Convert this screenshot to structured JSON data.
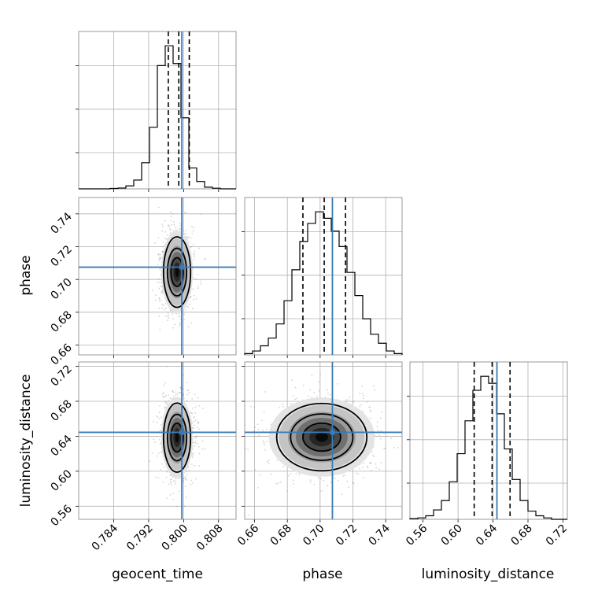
{
  "colors": {
    "truth": "#3a7bb5",
    "contour": "#000000",
    "scatter": "#808080",
    "grid": "#b0b0b0"
  },
  "chart_data": {
    "type": "corner",
    "grid": true,
    "parameters": [
      {
        "name": "geocent_time",
        "label": "geocent_time",
        "range": [
          0.776,
          0.812
        ],
        "ticks": [
          "0.784",
          "0.792",
          "0.800",
          "0.808"
        ],
        "tick_values": [
          0.784,
          0.792,
          0.8,
          0.808
        ],
        "truth": 0.7996,
        "quantiles": [
          0.7965,
          0.7989,
          0.8013
        ]
      },
      {
        "name": "phase",
        "label": "phase",
        "range": [
          0.654,
          0.75
        ],
        "ticks": [
          "0.66",
          "0.68",
          "0.70",
          "0.72",
          "0.74"
        ],
        "tick_values": [
          0.66,
          0.68,
          0.7,
          0.72,
          0.74
        ],
        "truth": 0.7075,
        "quantiles": [
          0.6895,
          0.7025,
          0.7155
        ]
      },
      {
        "name": "luminosity_distance",
        "label": "luminosity_distance",
        "range": [
          0.545,
          0.725
        ],
        "ticks": [
          "0.56",
          "0.60",
          "0.64",
          "0.68",
          "0.72"
        ],
        "tick_values": [
          0.56,
          0.6,
          0.64,
          0.68,
          0.72
        ],
        "truth": 0.6445,
        "quantiles": [
          0.6185,
          0.639,
          0.6595
        ]
      }
    ],
    "histograms": [
      {
        "parameter": "geocent_time",
        "bin_start": 0.776,
        "bin_width": 0.0018,
        "counts": [
          0,
          0,
          0,
          0,
          0.2,
          0.4,
          1.4,
          4.2,
          12.5,
          29.5,
          59,
          68.5,
          60,
          34,
          10,
          3.5,
          0.8,
          0.3,
          0,
          0
        ]
      },
      {
        "parameter": "phase",
        "bin_start": 0.654,
        "bin_width": 0.0048,
        "counts": [
          0.5,
          1.5,
          3.5,
          6.5,
          12,
          21,
          33,
          44,
          51,
          55.5,
          53,
          48,
          42,
          32,
          23,
          14,
          8,
          4.5,
          1.5,
          0.5
        ]
      },
      {
        "parameter": "luminosity_distance",
        "bin_start": 0.545,
        "bin_width": 0.009,
        "counts": [
          0.3,
          0.6,
          1.5,
          4,
          8,
          16,
          28,
          42,
          55,
          61,
          58,
          45,
          30,
          17,
          8,
          3.5,
          1.5,
          0.6,
          0,
          0
        ]
      }
    ],
    "joint_2d": [
      {
        "x": "geocent_time",
        "y": "phase",
        "peak": [
          0.7985,
          0.7045
        ],
        "contours": [
          {
            "rx": 0.0031,
            "ry": 0.0215
          },
          {
            "rx": 0.0022,
            "ry": 0.0145
          },
          {
            "rx": 0.0014,
            "ry": 0.0088
          }
        ]
      },
      {
        "x": "geocent_time",
        "y": "luminosity_distance",
        "peak": [
          0.7985,
          0.6385
        ],
        "contours": [
          {
            "rx": 0.0031,
            "ry": 0.0395
          },
          {
            "rx": 0.0022,
            "ry": 0.0265
          },
          {
            "rx": 0.0014,
            "ry": 0.0165
          }
        ]
      },
      {
        "x": "phase",
        "y": "luminosity_distance",
        "peak": [
          0.701,
          0.639
        ],
        "contours": [
          {
            "rx": 0.0275,
            "ry": 0.0385
          },
          {
            "rx": 0.019,
            "ry": 0.0265
          },
          {
            "rx": 0.0115,
            "ry": 0.016
          }
        ]
      }
    ]
  }
}
